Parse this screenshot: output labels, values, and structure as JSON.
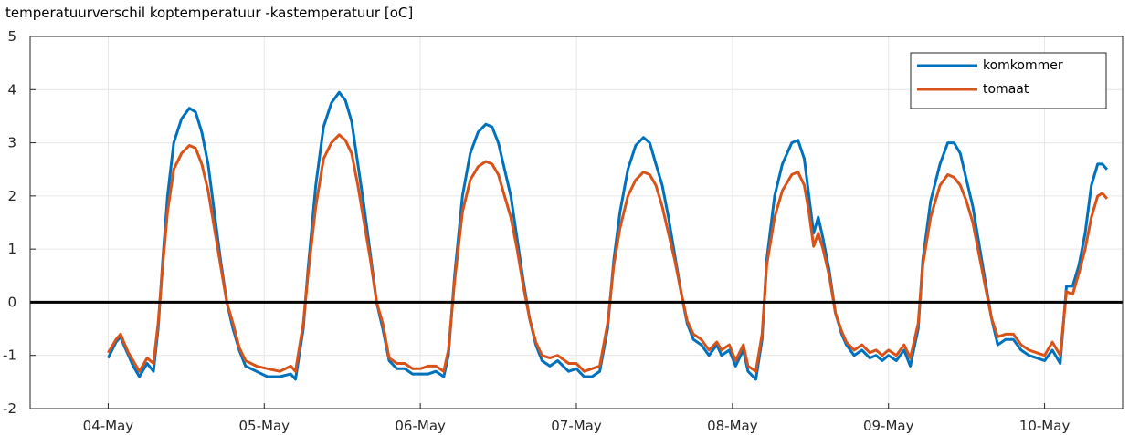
{
  "chart_data": {
    "type": "line",
    "title": "temperatuurverschil koptemperatuur -kastemperatuur [oC]",
    "xlabel": "",
    "ylabel": "",
    "xlim": [
      -0.5,
      6.5
    ],
    "ylim": [
      -2,
      5
    ],
    "yticks": [
      -2,
      -1,
      0,
      1,
      2,
      3,
      4,
      5
    ],
    "xticks": [
      {
        "value": 0,
        "label": "04-May"
      },
      {
        "value": 1,
        "label": "05-May"
      },
      {
        "value": 2,
        "label": "06-May"
      },
      {
        "value": 3,
        "label": "07-May"
      },
      {
        "value": 4,
        "label": "08-May"
      },
      {
        "value": 5,
        "label": "09-May"
      },
      {
        "value": 6,
        "label": "10-May"
      }
    ],
    "grid": true,
    "legend_position": "top-right",
    "zero_line": {
      "y": 0,
      "color": "#000000"
    },
    "series": [
      {
        "name": "komkommer",
        "color": "#0072BD",
        "points": [
          [
            0.0,
            -1.05
          ],
          [
            0.05,
            -0.75
          ],
          [
            0.08,
            -0.65
          ],
          [
            0.1,
            -0.8
          ],
          [
            0.13,
            -1.0
          ],
          [
            0.16,
            -1.2
          ],
          [
            0.2,
            -1.4
          ],
          [
            0.25,
            -1.15
          ],
          [
            0.29,
            -1.3
          ],
          [
            0.32,
            -0.5
          ],
          [
            0.35,
            0.8
          ],
          [
            0.38,
            2.0
          ],
          [
            0.42,
            3.0
          ],
          [
            0.47,
            3.45
          ],
          [
            0.52,
            3.65
          ],
          [
            0.56,
            3.58
          ],
          [
            0.6,
            3.2
          ],
          [
            0.64,
            2.6
          ],
          [
            0.68,
            1.7
          ],
          [
            0.72,
            0.8
          ],
          [
            0.76,
            0.0
          ],
          [
            0.8,
            -0.5
          ],
          [
            0.84,
            -0.9
          ],
          [
            0.88,
            -1.2
          ],
          [
            0.95,
            -1.3
          ],
          [
            1.02,
            -1.4
          ],
          [
            1.1,
            -1.4
          ],
          [
            1.17,
            -1.35
          ],
          [
            1.2,
            -1.45
          ],
          [
            1.25,
            -0.5
          ],
          [
            1.28,
            0.6
          ],
          [
            1.33,
            2.2
          ],
          [
            1.38,
            3.3
          ],
          [
            1.43,
            3.75
          ],
          [
            1.48,
            3.95
          ],
          [
            1.52,
            3.8
          ],
          [
            1.56,
            3.4
          ],
          [
            1.6,
            2.6
          ],
          [
            1.64,
            1.8
          ],
          [
            1.68,
            0.9
          ],
          [
            1.72,
            0.0
          ],
          [
            1.76,
            -0.5
          ],
          [
            1.8,
            -1.1
          ],
          [
            1.85,
            -1.25
          ],
          [
            1.9,
            -1.25
          ],
          [
            1.95,
            -1.35
          ],
          [
            2.0,
            -1.35
          ],
          [
            2.05,
            -1.35
          ],
          [
            2.1,
            -1.3
          ],
          [
            2.15,
            -1.4
          ],
          [
            2.18,
            -1.0
          ],
          [
            2.22,
            0.5
          ],
          [
            2.27,
            2.0
          ],
          [
            2.32,
            2.8
          ],
          [
            2.37,
            3.2
          ],
          [
            2.42,
            3.35
          ],
          [
            2.46,
            3.3
          ],
          [
            2.5,
            3.0
          ],
          [
            2.54,
            2.5
          ],
          [
            2.58,
            2.0
          ],
          [
            2.62,
            1.2
          ],
          [
            2.66,
            0.4
          ],
          [
            2.7,
            -0.3
          ],
          [
            2.74,
            -0.8
          ],
          [
            2.78,
            -1.1
          ],
          [
            2.83,
            -1.2
          ],
          [
            2.88,
            -1.1
          ],
          [
            2.95,
            -1.3
          ],
          [
            3.0,
            -1.25
          ],
          [
            3.05,
            -1.4
          ],
          [
            3.1,
            -1.4
          ],
          [
            3.15,
            -1.3
          ],
          [
            3.2,
            -0.5
          ],
          [
            3.24,
            0.8
          ],
          [
            3.28,
            1.7
          ],
          [
            3.33,
            2.5
          ],
          [
            3.38,
            2.95
          ],
          [
            3.43,
            3.1
          ],
          [
            3.47,
            3.0
          ],
          [
            3.51,
            2.6
          ],
          [
            3.55,
            2.2
          ],
          [
            3.59,
            1.6
          ],
          [
            3.63,
            0.9
          ],
          [
            3.67,
            0.2
          ],
          [
            3.71,
            -0.4
          ],
          [
            3.75,
            -0.7
          ],
          [
            3.8,
            -0.8
          ],
          [
            3.85,
            -1.0
          ],
          [
            3.9,
            -0.8
          ],
          [
            3.93,
            -1.0
          ],
          [
            3.98,
            -0.9
          ],
          [
            4.02,
            -1.2
          ],
          [
            4.07,
            -0.9
          ],
          [
            4.1,
            -1.3
          ],
          [
            4.15,
            -1.45
          ],
          [
            4.19,
            -0.7
          ],
          [
            4.22,
            0.8
          ],
          [
            4.27,
            2.0
          ],
          [
            4.32,
            2.6
          ],
          [
            4.38,
            3.0
          ],
          [
            4.42,
            3.05
          ],
          [
            4.46,
            2.7
          ],
          [
            4.49,
            2.0
          ],
          [
            4.52,
            1.3
          ],
          [
            4.55,
            1.6
          ],
          [
            4.58,
            1.2
          ],
          [
            4.62,
            0.6
          ],
          [
            4.66,
            -0.2
          ],
          [
            4.7,
            -0.6
          ],
          [
            4.73,
            -0.8
          ],
          [
            4.78,
            -1.0
          ],
          [
            4.83,
            -0.9
          ],
          [
            4.88,
            -1.05
          ],
          [
            4.92,
            -1.0
          ],
          [
            4.96,
            -1.1
          ],
          [
            5.0,
            -1.0
          ],
          [
            5.05,
            -1.1
          ],
          [
            5.1,
            -0.9
          ],
          [
            5.14,
            -1.2
          ],
          [
            5.19,
            -0.5
          ],
          [
            5.22,
            0.8
          ],
          [
            5.27,
            1.9
          ],
          [
            5.33,
            2.6
          ],
          [
            5.38,
            3.0
          ],
          [
            5.42,
            3.0
          ],
          [
            5.46,
            2.8
          ],
          [
            5.5,
            2.3
          ],
          [
            5.54,
            1.8
          ],
          [
            5.58,
            1.1
          ],
          [
            5.62,
            0.4
          ],
          [
            5.66,
            -0.3
          ],
          [
            5.7,
            -0.8
          ],
          [
            5.75,
            -0.7
          ],
          [
            5.8,
            -0.7
          ],
          [
            5.85,
            -0.9
          ],
          [
            5.9,
            -1.0
          ],
          [
            5.95,
            -1.05
          ],
          [
            6.0,
            -1.1
          ],
          [
            6.05,
            -0.9
          ],
          [
            6.1,
            -1.15
          ],
          [
            6.14,
            0.3
          ],
          [
            6.18,
            0.3
          ],
          [
            6.22,
            0.7
          ],
          [
            6.26,
            1.3
          ],
          [
            6.3,
            2.2
          ],
          [
            6.34,
            2.6
          ],
          [
            6.37,
            2.6
          ],
          [
            6.4,
            2.5
          ]
        ]
      },
      {
        "name": "tomaat",
        "color": "#D95319",
        "points": [
          [
            0.0,
            -0.95
          ],
          [
            0.05,
            -0.7
          ],
          [
            0.08,
            -0.6
          ],
          [
            0.1,
            -0.75
          ],
          [
            0.13,
            -0.95
          ],
          [
            0.16,
            -1.1
          ],
          [
            0.2,
            -1.3
          ],
          [
            0.25,
            -1.05
          ],
          [
            0.29,
            -1.15
          ],
          [
            0.32,
            -0.4
          ],
          [
            0.35,
            0.7
          ],
          [
            0.38,
            1.7
          ],
          [
            0.42,
            2.5
          ],
          [
            0.47,
            2.8
          ],
          [
            0.52,
            2.95
          ],
          [
            0.56,
            2.9
          ],
          [
            0.6,
            2.6
          ],
          [
            0.64,
            2.1
          ],
          [
            0.68,
            1.4
          ],
          [
            0.72,
            0.7
          ],
          [
            0.76,
            0.0
          ],
          [
            0.8,
            -0.4
          ],
          [
            0.84,
            -0.85
          ],
          [
            0.88,
            -1.1
          ],
          [
            0.95,
            -1.2
          ],
          [
            1.02,
            -1.25
          ],
          [
            1.1,
            -1.3
          ],
          [
            1.17,
            -1.2
          ],
          [
            1.2,
            -1.3
          ],
          [
            1.25,
            -0.4
          ],
          [
            1.28,
            0.5
          ],
          [
            1.33,
            1.8
          ],
          [
            1.38,
            2.7
          ],
          [
            1.43,
            3.0
          ],
          [
            1.48,
            3.15
          ],
          [
            1.52,
            3.05
          ],
          [
            1.56,
            2.8
          ],
          [
            1.6,
            2.2
          ],
          [
            1.64,
            1.5
          ],
          [
            1.68,
            0.8
          ],
          [
            1.72,
            0.0
          ],
          [
            1.76,
            -0.4
          ],
          [
            1.8,
            -1.05
          ],
          [
            1.85,
            -1.15
          ],
          [
            1.9,
            -1.15
          ],
          [
            1.95,
            -1.25
          ],
          [
            2.0,
            -1.25
          ],
          [
            2.05,
            -1.2
          ],
          [
            2.1,
            -1.2
          ],
          [
            2.15,
            -1.3
          ],
          [
            2.18,
            -0.9
          ],
          [
            2.22,
            0.4
          ],
          [
            2.27,
            1.7
          ],
          [
            2.32,
            2.3
          ],
          [
            2.37,
            2.55
          ],
          [
            2.42,
            2.65
          ],
          [
            2.46,
            2.6
          ],
          [
            2.5,
            2.4
          ],
          [
            2.54,
            2.0
          ],
          [
            2.58,
            1.6
          ],
          [
            2.62,
            1.0
          ],
          [
            2.66,
            0.3
          ],
          [
            2.7,
            -0.3
          ],
          [
            2.74,
            -0.75
          ],
          [
            2.78,
            -1.0
          ],
          [
            2.83,
            -1.05
          ],
          [
            2.88,
            -1.0
          ],
          [
            2.95,
            -1.15
          ],
          [
            3.0,
            -1.15
          ],
          [
            3.05,
            -1.3
          ],
          [
            3.1,
            -1.25
          ],
          [
            3.15,
            -1.2
          ],
          [
            3.2,
            -0.4
          ],
          [
            3.24,
            0.7
          ],
          [
            3.28,
            1.4
          ],
          [
            3.33,
            2.0
          ],
          [
            3.38,
            2.3
          ],
          [
            3.43,
            2.45
          ],
          [
            3.47,
            2.4
          ],
          [
            3.51,
            2.2
          ],
          [
            3.55,
            1.8
          ],
          [
            3.59,
            1.3
          ],
          [
            3.63,
            0.8
          ],
          [
            3.67,
            0.2
          ],
          [
            3.71,
            -0.35
          ],
          [
            3.75,
            -0.6
          ],
          [
            3.8,
            -0.7
          ],
          [
            3.85,
            -0.9
          ],
          [
            3.9,
            -0.75
          ],
          [
            3.93,
            -0.9
          ],
          [
            3.98,
            -0.8
          ],
          [
            4.02,
            -1.1
          ],
          [
            4.07,
            -0.8
          ],
          [
            4.1,
            -1.2
          ],
          [
            4.15,
            -1.3
          ],
          [
            4.19,
            -0.6
          ],
          [
            4.22,
            0.7
          ],
          [
            4.27,
            1.6
          ],
          [
            4.32,
            2.1
          ],
          [
            4.38,
            2.4
          ],
          [
            4.42,
            2.45
          ],
          [
            4.46,
            2.2
          ],
          [
            4.49,
            1.7
          ],
          [
            4.52,
            1.05
          ],
          [
            4.55,
            1.3
          ],
          [
            4.58,
            1.0
          ],
          [
            4.62,
            0.5
          ],
          [
            4.66,
            -0.2
          ],
          [
            4.7,
            -0.55
          ],
          [
            4.73,
            -0.75
          ],
          [
            4.78,
            -0.9
          ],
          [
            4.83,
            -0.8
          ],
          [
            4.88,
            -0.95
          ],
          [
            4.92,
            -0.9
          ],
          [
            4.96,
            -1.0
          ],
          [
            5.0,
            -0.9
          ],
          [
            5.05,
            -1.0
          ],
          [
            5.1,
            -0.8
          ],
          [
            5.14,
            -1.05
          ],
          [
            5.19,
            -0.4
          ],
          [
            5.22,
            0.7
          ],
          [
            5.27,
            1.6
          ],
          [
            5.33,
            2.2
          ],
          [
            5.38,
            2.4
          ],
          [
            5.42,
            2.35
          ],
          [
            5.46,
            2.2
          ],
          [
            5.5,
            1.9
          ],
          [
            5.54,
            1.5
          ],
          [
            5.58,
            0.9
          ],
          [
            5.62,
            0.3
          ],
          [
            5.66,
            -0.3
          ],
          [
            5.7,
            -0.65
          ],
          [
            5.75,
            -0.6
          ],
          [
            5.8,
            -0.6
          ],
          [
            5.85,
            -0.8
          ],
          [
            5.9,
            -0.9
          ],
          [
            5.95,
            -0.95
          ],
          [
            6.0,
            -1.0
          ],
          [
            6.05,
            -0.75
          ],
          [
            6.1,
            -1.0
          ],
          [
            6.14,
            0.2
          ],
          [
            6.18,
            0.15
          ],
          [
            6.22,
            0.55
          ],
          [
            6.26,
            1.0
          ],
          [
            6.3,
            1.6
          ],
          [
            6.34,
            2.0
          ],
          [
            6.37,
            2.05
          ],
          [
            6.4,
            1.95
          ]
        ]
      }
    ]
  }
}
